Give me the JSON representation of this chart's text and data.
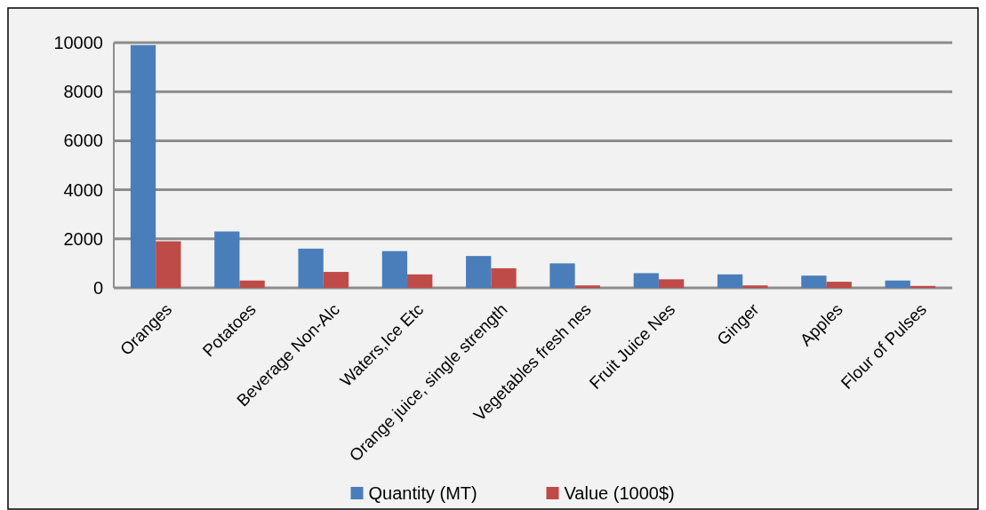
{
  "chart_data": {
    "type": "bar",
    "categories": [
      "Oranges",
      "Potatoes",
      "Beverage Non-Alc",
      "Waters,Ice Etc",
      "Orange juice, single strength",
      "Vegetables fresh nes",
      "Fruit Juice Nes",
      "Ginger",
      "Apples",
      "Flour of Pulses"
    ],
    "series": [
      {
        "name": "Quantity (MT)",
        "color": "#4a7ebb",
        "values": [
          9900,
          2300,
          1600,
          1500,
          1300,
          1000,
          600,
          550,
          500,
          300
        ]
      },
      {
        "name": "Value (1000$)",
        "color": "#be4b48",
        "values": [
          1900,
          300,
          650,
          550,
          800,
          100,
          350,
          100,
          250,
          80
        ]
      }
    ],
    "ylim": [
      0,
      10000
    ],
    "yticks": [
      0,
      2000,
      4000,
      6000,
      8000,
      10000
    ],
    "grid": "y",
    "legend": "bottom"
  }
}
